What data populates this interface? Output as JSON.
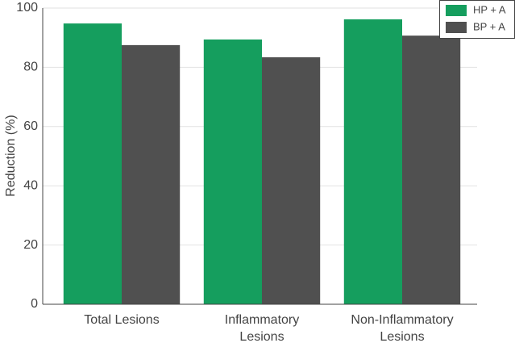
{
  "chart_data": {
    "type": "bar",
    "y_label": "Reduction (%)",
    "categories": [
      "Total Lesions",
      "Inflammatory Lesions",
      "Non-Inflammatory Lesions"
    ],
    "series": [
      {
        "name": "HP + A",
        "color": "#159e5e",
        "values": [
          94.8,
          89.4,
          96.2
        ]
      },
      {
        "name": "BP + A",
        "color": "#505050",
        "values": [
          87.5,
          83.4,
          90.7
        ]
      }
    ],
    "ylim": [
      0,
      100
    ],
    "yticks": [
      0,
      20,
      40,
      60,
      80,
      100
    ],
    "grid": true,
    "legend": "top-right"
  }
}
